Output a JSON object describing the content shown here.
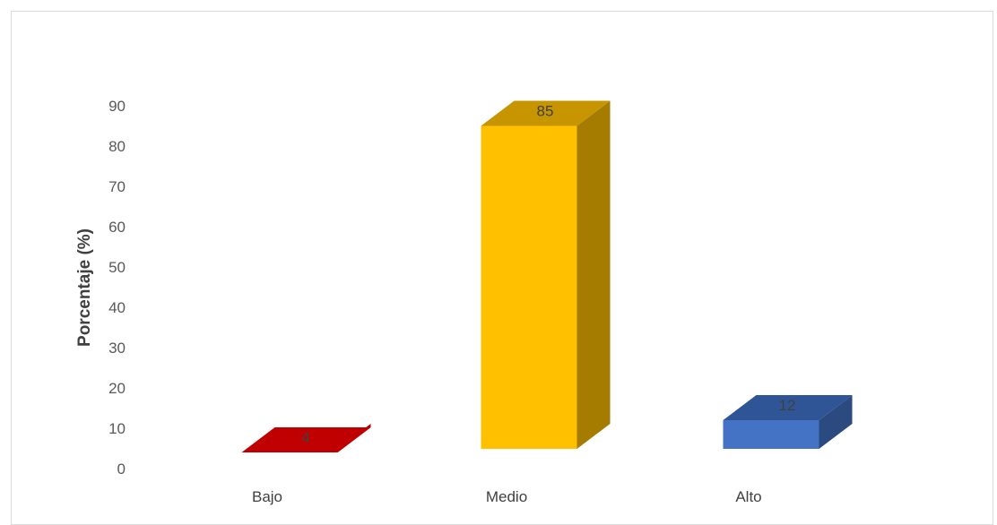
{
  "chart_data": {
    "type": "bar",
    "style": "3d-column",
    "categories": [
      "Bajo",
      "Medio",
      "Alto"
    ],
    "values": [
      4,
      85,
      12
    ],
    "data_labels": [
      "4",
      "85",
      "12"
    ],
    "title": "",
    "xlabel": "",
    "ylabel": "Porcentaje (%)",
    "ylim": [
      0,
      90
    ],
    "yticks": [
      0,
      10,
      20,
      30,
      40,
      50,
      60,
      70,
      80,
      90
    ],
    "grid": false,
    "legend": "none",
    "colors": {
      "Bajo": {
        "front": "#ff0000",
        "top": "#c00000",
        "side": "#b30000"
      },
      "Medio": {
        "front": "#ffc000",
        "top": "#c79500",
        "side": "#a67c00"
      },
      "Alto": {
        "front": "#4472c4",
        "top": "#2f5597",
        "side": "#2a4a80"
      }
    }
  }
}
